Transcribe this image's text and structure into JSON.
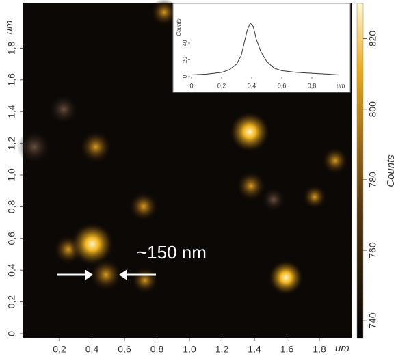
{
  "chart_data": [
    {
      "type": "image",
      "xlabel": "um",
      "ylabel": "um",
      "annotation": "~150 nm",
      "xlim": [
        0,
        2
      ],
      "ylim": [
        0,
        2
      ],
      "xticks": [
        {
          "value": 0.2,
          "label": "0,2"
        },
        {
          "value": 0.4,
          "label": "0,4"
        },
        {
          "value": 0.6,
          "label": "0,6"
        },
        {
          "value": 0.8,
          "label": "0,8"
        },
        {
          "value": 1.0,
          "label": "1,0"
        },
        {
          "value": 1.2,
          "label": "1,2"
        },
        {
          "value": 1.4,
          "label": "1,4"
        },
        {
          "value": 1.6,
          "label": "1,6"
        },
        {
          "value": 1.8,
          "label": "1,8"
        }
      ],
      "yticks": [
        0,
        {
          "value": 0.2,
          "label": "0,2"
        },
        {
          "value": 0.4,
          "label": "0,4"
        },
        {
          "value": 0.6,
          "label": "0,6"
        },
        {
          "value": 0.8,
          "label": "0,8"
        },
        {
          "value": 1.0,
          "label": "1,0"
        },
        {
          "value": 1.2,
          "label": "1,2"
        },
        {
          "value": 1.4,
          "label": "1,4"
        },
        {
          "value": 1.6,
          "label": "1,6"
        },
        {
          "value": 1.8,
          "label": "1,8"
        }
      ]
    },
    {
      "type": "colorbar",
      "label": "Counts",
      "ylim": [
        735,
        830
      ],
      "yticks": [
        740,
        760,
        780,
        800,
        820
      ]
    },
    {
      "type": "line",
      "ylabel": "Counts",
      "xlabel": "um",
      "color": "#333333",
      "x": [
        0,
        0.1,
        0.2,
        0.25,
        0.3,
        0.33,
        0.35,
        0.37,
        0.39,
        0.41,
        0.43,
        0.46,
        0.5,
        0.55,
        0.6,
        0.7,
        0.8,
        0.9,
        0.98
      ],
      "values": [
        2,
        3,
        5,
        8,
        15,
        25,
        40,
        55,
        64,
        60,
        45,
        30,
        18,
        10,
        7,
        5,
        4,
        3,
        2
      ],
      "xlim": [
        0,
        1
      ],
      "ylim": [
        0,
        80
      ],
      "xticks": [
        0,
        {
          "value": 0.2,
          "label": "0,2"
        },
        {
          "value": 0.4,
          "label": "0,4"
        },
        {
          "value": 0.6,
          "label": "0,6"
        },
        {
          "value": 0.8,
          "label": "0,8"
        }
      ],
      "yticks": [
        0,
        20,
        40
      ]
    }
  ]
}
